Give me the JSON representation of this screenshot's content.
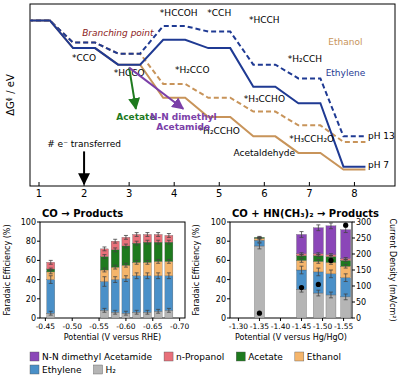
{
  "chart_data": [
    {
      "type": "line",
      "y_label": "ΔGᶲ / eV",
      "x": [
        1,
        2,
        3,
        4,
        5,
        6,
        7,
        8
      ],
      "xlim": [
        0.8,
        8.9
      ],
      "xticks": [
        1,
        2,
        3,
        4,
        5,
        6,
        7,
        8
      ],
      "ylim": [
        -6,
        0.6
      ],
      "tick_labels": "x",
      "series": [
        {
          "color": "#c8945a",
          "line_style": "dashed",
          "marker": "level",
          "values": [
            0,
            -0.8,
            -1.2,
            -2.3,
            -2.8,
            -3.3,
            -3.8,
            -4.4
          ]
        },
        {
          "color": "#1f3a93",
          "line_style": "dashed",
          "marker": "level",
          "values": [
            0,
            -0.8,
            -1.2,
            -0.2,
            -0.4,
            -1.6,
            -2.1,
            -4.2
          ]
        },
        {
          "color": "#c8945a",
          "line_style": "solid",
          "marker": "level",
          "values": [
            0,
            -1.0,
            -1.6,
            -2.8,
            -3.5,
            -4.2,
            -4.8,
            -5.4
          ]
        },
        {
          "color": "#1f3a93",
          "line_style": "solid",
          "marker": "level",
          "values": [
            0,
            -1.0,
            -1.6,
            -0.7,
            -1.0,
            -2.4,
            -3.0,
            -5.3
          ]
        }
      ],
      "annotations": [
        {
          "text": "*CCO",
          "x": 2,
          "y": -1.45
        },
        {
          "text": "Branching point",
          "x": 2.75,
          "y": -0.55,
          "color": "#8b1a1a"
        },
        {
          "text": "*HCCO",
          "x": 3,
          "y": -2.0
        },
        {
          "text": "*HCCOH",
          "x": 4.1,
          "y": 0.15
        },
        {
          "text": "*CCH",
          "x": 5,
          "y": 0.15
        },
        {
          "text": "*HCCH",
          "x": 6,
          "y": -0.1
        },
        {
          "text": "*H₂CCH",
          "x": 6.9,
          "y": -1.5
        },
        {
          "text": "*H₂CCO",
          "x": 4.4,
          "y": -1.9
        },
        {
          "text": "*H₂CCHO",
          "x": 5,
          "y": -4.1
        },
        {
          "text": "*H₃CCHO",
          "x": 6,
          "y": -2.95
        },
        {
          "text": "Acetaldehyde",
          "x": 6,
          "y": -4.9
        },
        {
          "text": "*H₃CCH₂O",
          "x": 7.05,
          "y": -4.4
        },
        {
          "text": "Acetate",
          "x": 3.15,
          "y": -3.6,
          "color": "#1e7a1e",
          "marker": "arrow"
        },
        {
          "text": "N-N dimethyl\nAcetamide",
          "x": 4.2,
          "y": -3.6,
          "color": "#7b3fa8",
          "marker": "arrow"
        },
        {
          "text": "Ethanol",
          "x": 7.8,
          "y": -0.9,
          "color": "#c8945a"
        },
        {
          "text": "Ethylene",
          "x": 7.8,
          "y": -2.0,
          "color": "#1f3a93"
        },
        {
          "text": "pH 13",
          "x": 8.3,
          "y": -4.3
        },
        {
          "text": "pH 7",
          "x": 8.3,
          "y": -5.35
        },
        {
          "text": "# e⁻ transferred",
          "x": 2,
          "y": -4.6,
          "marker": "arrow_down"
        }
      ]
    },
    {
      "type": "bar",
      "stacked": true,
      "title": "CO → Products",
      "x_label": "Potential (V versus RHE)",
      "y_label": "Faradaic Efficiency (%)",
      "x": [
        -0.46,
        -0.56,
        -0.58,
        -0.6,
        -0.62,
        -0.64,
        -0.66,
        -0.68
      ],
      "xlim": [
        -0.44,
        -0.71
      ],
      "xticks": [
        {
          "value": -0.45,
          "label": "-0.45"
        },
        {
          "value": -0.5,
          "label": "-0.50"
        },
        {
          "value": -0.55,
          "label": "-0.55"
        },
        {
          "value": -0.6,
          "label": "-0.60"
        },
        {
          "value": -0.65,
          "label": "-0.65"
        },
        {
          "value": -0.7,
          "label": "-0.70"
        }
      ],
      "ylim": [
        0,
        100
      ],
      "yticks": [
        0,
        20,
        40,
        60,
        80,
        100
      ],
      "series": [
        {
          "color": "#b5b5b5",
          "values": [
            5,
            8,
            6,
            5,
            6,
            6,
            7,
            8
          ],
          "errors": [
            2,
            2,
            2,
            2,
            2,
            2,
            2,
            2
          ]
        },
        {
          "color": "#4a90c8",
          "values": [
            35,
            30,
            34,
            36,
            38,
            38,
            37,
            36
          ],
          "errors": [
            4,
            5,
            3,
            3,
            3,
            3,
            3,
            3
          ]
        },
        {
          "color": "#f5b56b",
          "values": [
            8,
            12,
            13,
            14,
            14,
            14,
            15,
            15
          ],
          "errors": [
            2,
            2,
            2,
            2,
            2,
            2,
            2,
            2
          ]
        },
        {
          "color": "#1e7a1e",
          "values": [
            3,
            14,
            18,
            20,
            20,
            21,
            20,
            20
          ],
          "errors": [
            1,
            2,
            2,
            2,
            2,
            2,
            2,
            2
          ]
        },
        {
          "color": "#e8707a",
          "values": [
            7,
            8,
            9,
            9,
            9,
            8,
            8,
            7
          ],
          "errors": [
            2,
            2,
            2,
            2,
            2,
            2,
            2,
            2
          ]
        }
      ]
    },
    {
      "type": "bar",
      "stacked": true,
      "legend": "bottom",
      "title": "CO + HN(CH₃)₂ → Products",
      "x_label": "Potential (V versus Hg/HgO)",
      "y_label": "Faradaic Efficiency (%)",
      "y2_label": "Current Density (mA/cm²)",
      "x": [
        -1.35,
        -1.45,
        -1.49,
        -1.52,
        -1.555
      ],
      "xlim": [
        -1.28,
        -1.57
      ],
      "xticks": [
        {
          "value": -1.3,
          "label": "-1.30"
        },
        {
          "value": -1.35,
          "label": "-1.35"
        },
        {
          "value": -1.4,
          "label": "-1.40"
        },
        {
          "value": -1.45,
          "label": "-1.45"
        },
        {
          "value": -1.5,
          "label": "-1.50"
        },
        {
          "value": -1.55,
          "label": "-1.55"
        }
      ],
      "ylim": [
        0,
        100
      ],
      "yticks": [
        0,
        20,
        40,
        60,
        80,
        100
      ],
      "y2lim": [
        0,
        300
      ],
      "y2ticks": [
        0,
        50,
        100,
        150,
        200,
        250,
        300
      ],
      "series": [
        {
          "name": "H₂",
          "color": "#b5b5b5",
          "values": [
            75,
            30,
            26,
            24,
            22
          ],
          "errors": [
            3,
            3,
            3,
            3,
            3
          ]
        },
        {
          "name": "Ethylene",
          "color": "#4a90c8",
          "values": [
            6,
            20,
            22,
            22,
            20
          ],
          "errors": [
            2,
            4,
            4,
            4,
            4
          ]
        },
        {
          "name": "Ethanol",
          "color": "#f5b56b",
          "values": [
            2,
            10,
            11,
            12,
            12
          ],
          "errors": [
            1,
            2,
            2,
            2,
            2
          ]
        },
        {
          "name": "Acetate",
          "color": "#1e7a1e",
          "values": [
            1,
            5,
            6,
            6,
            6
          ],
          "errors": [
            1,
            1,
            1,
            1,
            1
          ]
        },
        {
          "name": "n-Propanol",
          "color": "#e8707a",
          "values": [
            0,
            2,
            2,
            2,
            2
          ],
          "errors": [
            0,
            1,
            1,
            1,
            1
          ]
        },
        {
          "name": "N-N dimethyl Acetamide",
          "color": "#8b47b8",
          "values": [
            0,
            20,
            27,
            30,
            30
          ],
          "errors": [
            0,
            3,
            3,
            3,
            3
          ]
        },
        {
          "type": "scatter",
          "axis": "y2",
          "color": "#000000",
          "marker": "circle",
          "values": [
            15,
            95,
            105,
            180,
            290
          ]
        }
      ]
    }
  ]
}
